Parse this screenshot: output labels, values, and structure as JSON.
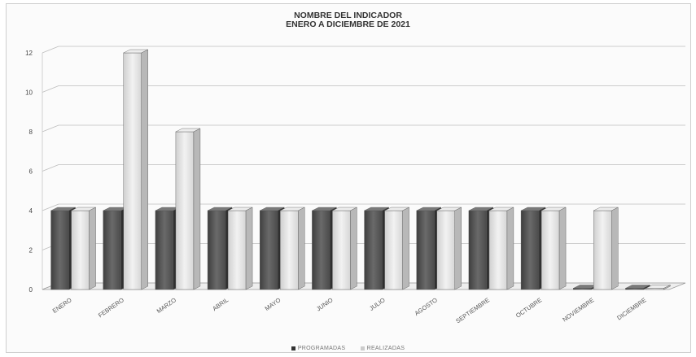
{
  "chart_data": {
    "type": "bar",
    "title": "NOMBRE DEL INDICADOR",
    "subtitle": "ENERO A DICIEMBRE DE 2021",
    "categories": [
      "ENERO",
      "FEBRERO",
      "MARZO",
      "ABRIL",
      "MAYO",
      "JUNIO",
      "JULIO",
      "AGOSTO",
      "SEPTIEMBRE",
      "OCTUBRE",
      "NOVIEMBRE",
      "DICIEMBRE"
    ],
    "series": [
      {
        "name": "PROGRAMADAS",
        "values": [
          4,
          4,
          4,
          4,
          4,
          4,
          4,
          4,
          4,
          4,
          0,
          0
        ],
        "color": "#5e5e5e"
      },
      {
        "name": "REALIZADAS",
        "values": [
          4,
          12,
          8,
          4,
          4,
          4,
          4,
          4,
          4,
          4,
          4,
          0
        ],
        "color": "#dcdcdc"
      }
    ],
    "ylim": [
      0,
      12
    ],
    "yticks": [
      0,
      2,
      4,
      6,
      8,
      10,
      12
    ],
    "grid": true,
    "legend": "bottom"
  }
}
